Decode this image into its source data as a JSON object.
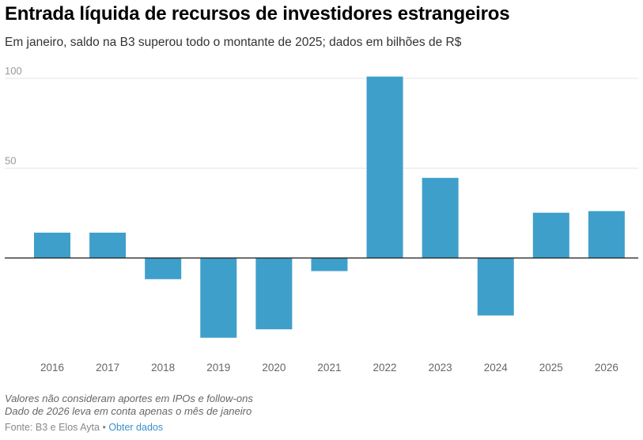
{
  "header": {
    "title": "Entrada líquida de recursos de investidores estrangeiros",
    "subtitle": "Em janeiro, saldo na B3 superou todo o montante de 2025; dados em bilhões de R$"
  },
  "footer": {
    "notes": [
      "Valores não consideram aportes em IPOs e follow-ons",
      "Dado de 2026 leva em conta apenas o mês de janeiro"
    ],
    "source_label": "Fonte: B3 e Elos Ayta",
    "separator": " • ",
    "get_data_link": "Obter dados"
  },
  "colors": {
    "bar": "#3f9fcb",
    "gridline": "#e6e6e6",
    "zero_line": "#1a1a1a",
    "link": "#3a8fcc"
  },
  "chart_data": {
    "type": "bar",
    "title": "Entrada líquida de recursos de investidores estrangeiros",
    "subtitle": "Em janeiro, saldo na B3 superou todo o montante de 2025; dados em bilhões de R$",
    "xlabel": "",
    "ylabel": "bilhões de R$",
    "categories": [
      "2016",
      "2017",
      "2018",
      "2019",
      "2020",
      "2021",
      "2022",
      "2023",
      "2024",
      "2025",
      "2026"
    ],
    "values": [
      14.1,
      14.1,
      -11.8,
      -44.4,
      -39.7,
      -7.3,
      101.0,
      44.6,
      -32.0,
      25.2,
      26.1
    ],
    "ylim": [
      -50,
      100
    ],
    "yticks": [
      50,
      100
    ],
    "ytick_labels": [
      "50",
      "100"
    ],
    "grid": true,
    "legend": "none"
  }
}
